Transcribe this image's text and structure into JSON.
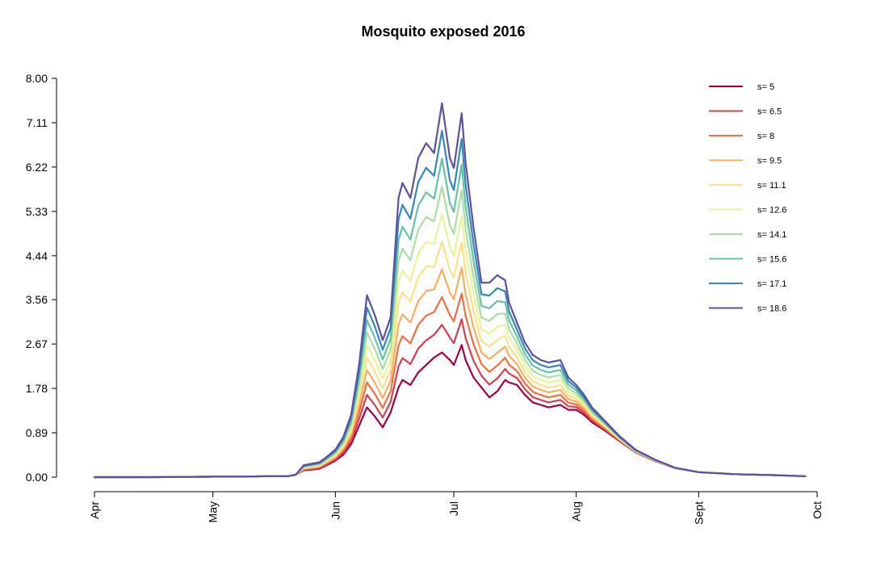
{
  "chart_data": {
    "type": "line",
    "title": "Mosquito exposed 2016",
    "xlabel": "",
    "ylabel": "",
    "xlim": [
      "2016-04-01",
      "2016-10-01"
    ],
    "ylim": [
      0,
      8.0
    ],
    "y_ticks": [
      "0.00",
      "0.89",
      "1.78",
      "2.67",
      "3.56",
      "4.44",
      "5.33",
      "6.22",
      "7.11",
      "8.00"
    ],
    "y_tick_values": [
      0,
      0.89,
      1.78,
      2.67,
      3.56,
      4.44,
      5.33,
      6.22,
      7.11,
      8.0
    ],
    "x_tick_labels": [
      "Apr",
      "May",
      "Jun",
      "Jul",
      "Aug",
      "Sept",
      "Oct"
    ],
    "x_tick_dates": [
      "2016-04-01",
      "2016-05-01",
      "2016-06-01",
      "2016-07-01",
      "2016-08-01",
      "2016-09-01",
      "2016-10-01"
    ],
    "grid": false,
    "legend_position": "top-right",
    "x": [
      "2016-04-01",
      "2016-04-15",
      "2016-05-01",
      "2016-05-08",
      "2016-05-15",
      "2016-05-20",
      "2016-05-22",
      "2016-05-24",
      "2016-05-26",
      "2016-05-28",
      "2016-05-30",
      "2016-06-01",
      "2016-06-03",
      "2016-06-05",
      "2016-06-07",
      "2016-06-09",
      "2016-06-11",
      "2016-06-13",
      "2016-06-15",
      "2016-06-17",
      "2016-06-18",
      "2016-06-20",
      "2016-06-22",
      "2016-06-24",
      "2016-06-26",
      "2016-06-28",
      "2016-06-30",
      "2016-07-01",
      "2016-07-03",
      "2016-07-04",
      "2016-07-06",
      "2016-07-08",
      "2016-07-10",
      "2016-07-12",
      "2016-07-14",
      "2016-07-15",
      "2016-07-17",
      "2016-07-19",
      "2016-07-21",
      "2016-07-23",
      "2016-07-25",
      "2016-07-28",
      "2016-07-30",
      "2016-08-01",
      "2016-08-03",
      "2016-08-05",
      "2016-08-08",
      "2016-08-12",
      "2016-08-16",
      "2016-08-21",
      "2016-08-26",
      "2016-09-01",
      "2016-09-10",
      "2016-09-20",
      "2016-09-28"
    ],
    "base_values": [
      0,
      0,
      0.01,
      0.01,
      0.02,
      0.02,
      0.05,
      0.14,
      0.15,
      0.17,
      0.25,
      0.33,
      0.45,
      0.66,
      1.03,
      1.4,
      1.22,
      1.0,
      1.3,
      1.8,
      1.95,
      1.85,
      2.1,
      2.25,
      2.4,
      2.5,
      2.35,
      2.25,
      2.65,
      2.35,
      2.0,
      1.8,
      1.6,
      1.72,
      1.95,
      1.9,
      1.85,
      1.65,
      1.5,
      1.45,
      1.4,
      1.45,
      1.35,
      1.35,
      1.25,
      1.1,
      0.95,
      0.72,
      0.5,
      0.32,
      0.18,
      0.1,
      0.06,
      0.04,
      0.02
    ],
    "peak_values": [
      0,
      0,
      0.01,
      0.01,
      0.02,
      0.02,
      0.05,
      0.24,
      0.27,
      0.3,
      0.42,
      0.55,
      0.8,
      1.25,
      2.25,
      3.65,
      3.25,
      2.75,
      3.2,
      5.6,
      5.9,
      5.6,
      6.4,
      6.7,
      6.5,
      7.5,
      6.4,
      6.2,
      7.3,
      6.3,
      5.0,
      3.9,
      3.9,
      4.05,
      3.95,
      3.5,
      3.1,
      2.7,
      2.45,
      2.35,
      2.3,
      2.35,
      2.0,
      1.85,
      1.65,
      1.4,
      1.15,
      0.82,
      0.55,
      0.35,
      0.19,
      0.1,
      0.06,
      0.04,
      0.02
    ],
    "series": [
      {
        "name": "s= 5",
        "color": "#9E0142"
      },
      {
        "name": "s= 6.5",
        "color": "#D53E4F"
      },
      {
        "name": "s= 8",
        "color": "#F46D43"
      },
      {
        "name": "s= 9.5",
        "color": "#FDAE61"
      },
      {
        "name": "s= 11.1",
        "color": "#FEE08B"
      },
      {
        "name": "s= 12.6",
        "color": "#E6F598"
      },
      {
        "name": "s= 14.1",
        "color": "#ABDDA4"
      },
      {
        "name": "s= 15.6",
        "color": "#66C2A5"
      },
      {
        "name": "s= 17.1",
        "color": "#3288BD"
      },
      {
        "name": "s= 18.6",
        "color": "#5E4FA2"
      }
    ]
  }
}
